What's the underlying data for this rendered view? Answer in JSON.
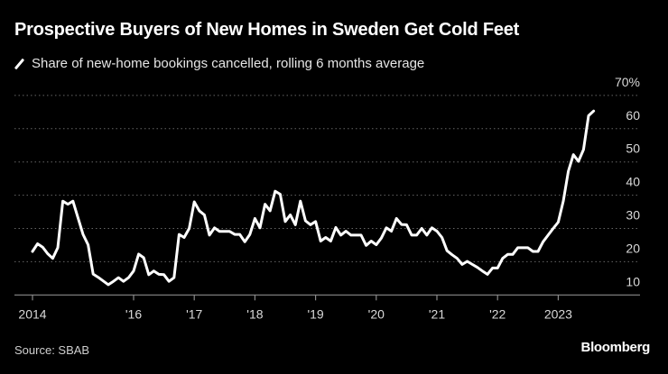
{
  "title": "Prospective Buyers of New Homes in Sweden Get Cold Feet",
  "legend_label": "Share of new-home bookings cancelled, rolling 6 months average",
  "source": "Source: SBAB",
  "logo": "Bloomberg",
  "colors": {
    "background": "#000000",
    "line": "#ffffff",
    "grid": "#666666"
  },
  "chart_data": {
    "type": "line",
    "title": "Prospective Buyers of New Homes in Sweden Get Cold Feet",
    "xlabel": "",
    "ylabel": "",
    "ylim": [
      10,
      70
    ],
    "y_unit": "%",
    "grid": true,
    "legend_placement": "top-left",
    "y_ticks": [
      {
        "value": 10,
        "label": "10"
      },
      {
        "value": 20,
        "label": "20"
      },
      {
        "value": 30,
        "label": "30"
      },
      {
        "value": 40,
        "label": "40"
      },
      {
        "value": 50,
        "label": "50"
      },
      {
        "value": 60,
        "label": "60"
      },
      {
        "value": 70,
        "label": "70%"
      }
    ],
    "x_ticks": [
      {
        "date": "2014-05",
        "label": "2014"
      },
      {
        "date": "2016-01",
        "label": "'16"
      },
      {
        "date": "2017-01",
        "label": "'17"
      },
      {
        "date": "2018-01",
        "label": "'18"
      },
      {
        "date": "2019-01",
        "label": "'19"
      },
      {
        "date": "2020-01",
        "label": "'20"
      },
      {
        "date": "2021-01",
        "label": "'21"
      },
      {
        "date": "2022-01",
        "label": "'22"
      },
      {
        "date": "2023-01",
        "label": "2023"
      }
    ],
    "series": [
      {
        "name": "Share of new-home bookings cancelled, rolling 6 months average",
        "x": [
          "2014-05",
          "2014-06",
          "2014-07",
          "2014-08",
          "2014-09",
          "2014-10",
          "2014-11",
          "2014-12",
          "2015-01",
          "2015-02",
          "2015-03",
          "2015-04",
          "2015-05",
          "2015-06",
          "2015-07",
          "2015-08",
          "2015-09",
          "2015-10",
          "2015-11",
          "2015-12",
          "2016-01",
          "2016-02",
          "2016-03",
          "2016-04",
          "2016-05",
          "2016-06",
          "2016-07",
          "2016-08",
          "2016-09",
          "2016-10",
          "2016-11",
          "2016-12",
          "2017-01",
          "2017-02",
          "2017-03",
          "2017-04",
          "2017-05",
          "2017-06",
          "2017-07",
          "2017-08",
          "2017-09",
          "2017-10",
          "2017-11",
          "2017-12",
          "2018-01",
          "2018-02",
          "2018-03",
          "2018-04",
          "2018-05",
          "2018-06",
          "2018-07",
          "2018-08",
          "2018-09",
          "2018-10",
          "2018-11",
          "2018-12",
          "2019-01",
          "2019-02",
          "2019-03",
          "2019-04",
          "2019-05",
          "2019-06",
          "2019-07",
          "2019-08",
          "2019-09",
          "2019-10",
          "2019-11",
          "2019-12",
          "2020-01",
          "2020-02",
          "2020-03",
          "2020-04",
          "2020-05",
          "2020-06",
          "2020-07",
          "2020-08",
          "2020-09",
          "2020-10",
          "2020-11",
          "2020-12",
          "2021-01",
          "2021-02",
          "2021-03",
          "2021-04",
          "2021-05",
          "2021-06",
          "2021-07",
          "2021-08",
          "2021-09",
          "2021-10",
          "2021-11",
          "2021-12",
          "2022-01",
          "2022-02",
          "2022-03",
          "2022-04",
          "2022-05",
          "2022-06",
          "2022-07",
          "2022-08",
          "2022-09",
          "2022-10",
          "2022-11",
          "2022-12",
          "2023-01",
          "2023-02",
          "2023-03",
          "2023-04",
          "2023-05",
          "2023-06",
          "2023-07",
          "2023-08"
        ],
        "values": [
          23.1,
          25.4,
          24.4,
          22.4,
          21,
          24.2,
          38.2,
          37.3,
          38.2,
          33.2,
          28.2,
          25.1,
          16.3,
          15.3,
          14.2,
          13.1,
          14.1,
          15.2,
          14.1,
          15.2,
          17.2,
          22.3,
          21.2,
          16.1,
          17.2,
          16.2,
          16.1,
          14.1,
          15.2,
          28.2,
          27.3,
          30,
          38,
          35.3,
          34.1,
          28,
          30.2,
          29.1,
          29.1,
          29.1,
          28.2,
          28.2,
          26,
          28.2,
          33,
          30.2,
          37.3,
          35.3,
          41.2,
          40.3,
          32.1,
          34.1,
          31.1,
          38.2,
          32.3,
          31.1,
          32.1,
          26.2,
          27.3,
          26.2,
          30.3,
          28,
          29.2,
          28,
          28,
          28,
          24.9,
          26.2,
          25.1,
          27.1,
          30.2,
          29.2,
          33,
          31.2,
          31.1,
          28,
          28,
          30,
          28,
          30.2,
          29.2,
          27.3,
          23.3,
          22.1,
          21,
          19.2,
          20.1,
          19.2,
          18.3,
          17.2,
          16.2,
          18.1,
          18.1,
          21,
          22.2,
          22.2,
          24.2,
          24.2,
          24.2,
          23.1,
          23.1,
          26,
          28,
          30,
          31.9,
          38.2,
          47.2,
          52.2,
          50.2,
          53.7,
          63.9,
          65.3
        ]
      }
    ]
  }
}
